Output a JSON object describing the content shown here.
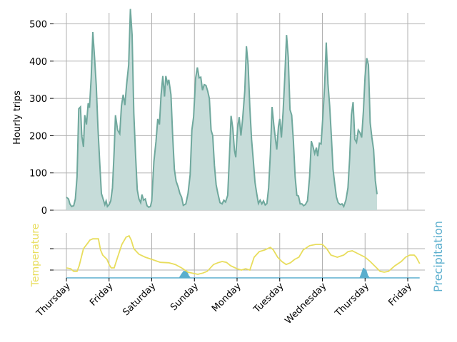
{
  "chart_data": [
    {
      "type": "area",
      "ylabel": "Hourly trips",
      "ylim": [
        0,
        560
      ],
      "yticks": [
        0,
        100,
        200,
        300,
        400,
        500
      ],
      "x_unit": "days since start (hourly samples)",
      "x_range": [
        0,
        8
      ],
      "xticks": [
        0,
        1,
        2,
        3,
        4,
        5,
        6,
        7,
        8
      ],
      "grid": true,
      "color": "#6fa89d",
      "fill": "#c6dcd9",
      "series": [
        {
          "points": [
            [
              0,
              35
            ],
            [
              0.05,
              30
            ],
            [
              0.08,
              17
            ],
            [
              0.12,
              10
            ],
            [
              0.17,
              12
            ],
            [
              0.21,
              30
            ],
            [
              0.25,
              90
            ],
            [
              0.29,
              272
            ],
            [
              0.33,
              277
            ],
            [
              0.36,
              200
            ],
            [
              0.4,
              170
            ],
            [
              0.43,
              255
            ],
            [
              0.47,
              230
            ],
            [
              0.51,
              287
            ],
            [
              0.54,
              275
            ],
            [
              0.58,
              355
            ],
            [
              0.62,
              478
            ],
            [
              0.66,
              410
            ],
            [
              0.7,
              335
            ],
            [
              0.74,
              220
            ],
            [
              0.78,
              130
            ],
            [
              0.82,
              45
            ],
            [
              0.86,
              30
            ],
            [
              0.9,
              15
            ],
            [
              0.93,
              25
            ],
            [
              0.96,
              10
            ],
            [
              1.0,
              15
            ],
            [
              1.04,
              25
            ],
            [
              1.08,
              60
            ],
            [
              1.12,
              160
            ],
            [
              1.15,
              255
            ],
            [
              1.2,
              215
            ],
            [
              1.25,
              205
            ],
            [
              1.29,
              280
            ],
            [
              1.33,
              310
            ],
            [
              1.37,
              282
            ],
            [
              1.41,
              335
            ],
            [
              1.46,
              390
            ],
            [
              1.5,
              540
            ],
            [
              1.54,
              470
            ],
            [
              1.58,
              260
            ],
            [
              1.62,
              150
            ],
            [
              1.66,
              55
            ],
            [
              1.7,
              30
            ],
            [
              1.74,
              20
            ],
            [
              1.77,
              42
            ],
            [
              1.81,
              27
            ],
            [
              1.85,
              30
            ],
            [
              1.89,
              12
            ],
            [
              1.93,
              8
            ],
            [
              1.97,
              10
            ],
            [
              2.0,
              25
            ],
            [
              2.05,
              130
            ],
            [
              2.1,
              185
            ],
            [
              2.14,
              245
            ],
            [
              2.18,
              230
            ],
            [
              2.22,
              310
            ],
            [
              2.26,
              360
            ],
            [
              2.3,
              305
            ],
            [
              2.33,
              360
            ],
            [
              2.37,
              340
            ],
            [
              2.4,
              350
            ],
            [
              2.45,
              310
            ],
            [
              2.49,
              200
            ],
            [
              2.53,
              110
            ],
            [
              2.57,
              78
            ],
            [
              2.62,
              62
            ],
            [
              2.66,
              45
            ],
            [
              2.7,
              35
            ],
            [
              2.74,
              13
            ],
            [
              2.8,
              17
            ],
            [
              2.85,
              45
            ],
            [
              2.9,
              95
            ],
            [
              2.94,
              215
            ],
            [
              2.98,
              250
            ],
            [
              3.03,
              355
            ],
            [
              3.07,
              383
            ],
            [
              3.11,
              355
            ],
            [
              3.15,
              357
            ],
            [
              3.19,
              322
            ],
            [
              3.23,
              337
            ],
            [
              3.27,
              335
            ],
            [
              3.31,
              320
            ],
            [
              3.35,
              300
            ],
            [
              3.39,
              215
            ],
            [
              3.43,
              200
            ],
            [
              3.47,
              120
            ],
            [
              3.51,
              68
            ],
            [
              3.55,
              45
            ],
            [
              3.6,
              20
            ],
            [
              3.65,
              17
            ],
            [
              3.69,
              27
            ],
            [
              3.73,
              22
            ],
            [
              3.78,
              40
            ],
            [
              3.82,
              140
            ],
            [
              3.86,
              253
            ],
            [
              3.9,
              220
            ],
            [
              3.94,
              160
            ],
            [
              3.97,
              142
            ],
            [
              4.01,
              220
            ],
            [
              4.05,
              250
            ],
            [
              4.09,
              200
            ],
            [
              4.13,
              245
            ],
            [
              4.18,
              320
            ],
            [
              4.22,
              440
            ],
            [
              4.26,
              390
            ],
            [
              4.3,
              275
            ],
            [
              4.34,
              190
            ],
            [
              4.38,
              135
            ],
            [
              4.42,
              75
            ],
            [
              4.46,
              45
            ],
            [
              4.5,
              18
            ],
            [
              4.54,
              27
            ],
            [
              4.58,
              17
            ],
            [
              4.62,
              25
            ],
            [
              4.66,
              14
            ],
            [
              4.7,
              18
            ],
            [
              4.74,
              60
            ],
            [
              4.78,
              150
            ],
            [
              4.82,
              277
            ],
            [
              4.86,
              230
            ],
            [
              4.9,
              190
            ],
            [
              4.93,
              163
            ],
            [
              4.97,
              225
            ],
            [
              5.0,
              245
            ],
            [
              5.04,
              195
            ],
            [
              5.08,
              265
            ],
            [
              5.12,
              360
            ],
            [
              5.16,
              470
            ],
            [
              5.2,
              410
            ],
            [
              5.24,
              270
            ],
            [
              5.28,
              255
            ],
            [
              5.32,
              185
            ],
            [
              5.36,
              90
            ],
            [
              5.4,
              40
            ],
            [
              5.44,
              38
            ],
            [
              5.48,
              17
            ],
            [
              5.52,
              17
            ],
            [
              5.56,
              12
            ],
            [
              5.6,
              15
            ],
            [
              5.65,
              25
            ],
            [
              5.7,
              90
            ],
            [
              5.74,
              185
            ],
            [
              5.78,
              170
            ],
            [
              5.82,
              152
            ],
            [
              5.86,
              168
            ],
            [
              5.89,
              145
            ],
            [
              5.93,
              180
            ],
            [
              5.97,
              178
            ],
            [
              6.01,
              250
            ],
            [
              6.05,
              330
            ],
            [
              6.09,
              450
            ],
            [
              6.13,
              340
            ],
            [
              6.17,
              280
            ],
            [
              6.21,
              200
            ],
            [
              6.25,
              110
            ],
            [
              6.29,
              70
            ],
            [
              6.33,
              35
            ],
            [
              6.37,
              20
            ],
            [
              6.42,
              15
            ],
            [
              6.46,
              17
            ],
            [
              6.5,
              10
            ],
            [
              6.55,
              27
            ],
            [
              6.6,
              60
            ],
            [
              6.64,
              140
            ],
            [
              6.68,
              255
            ],
            [
              6.72,
              290
            ],
            [
              6.76,
              190
            ],
            [
              6.8,
              182
            ],
            [
              6.84,
              215
            ],
            [
              6.88,
              208
            ],
            [
              6.92,
              195
            ],
            [
              6.96,
              265
            ],
            [
              7.0,
              360
            ],
            [
              7.04,
              408
            ],
            [
              7.08,
              390
            ],
            [
              7.12,
              235
            ],
            [
              7.16,
              195
            ],
            [
              7.2,
              163
            ],
            [
              7.24,
              80
            ],
            [
              7.28,
              43
            ]
          ]
        }
      ]
    },
    {
      "type": "line",
      "ylabel": "Temperature",
      "ylabel_color": "#e8dd5c",
      "x_range": [
        0,
        8
      ],
      "xticks": [
        0,
        1,
        2,
        3,
        4,
        5,
        6,
        7,
        8
      ],
      "xtick_labels": [
        "Thursday",
        "Friday",
        "Saturday",
        "Sunday",
        "Monday",
        "Tuesday",
        "Wednesday",
        "Thursday",
        "Friday"
      ],
      "ylim": [
        0,
        1
      ],
      "grid": true,
      "color": "#e8dd5c",
      "series": [
        {
          "points": [
            [
              0,
              0.2
            ],
            [
              0.1,
              0.18
            ],
            [
              0.17,
              0.12
            ],
            [
              0.25,
              0.12
            ],
            [
              0.3,
              0.25
            ],
            [
              0.4,
              0.65
            ],
            [
              0.5,
              0.78
            ],
            [
              0.55,
              0.85
            ],
            [
              0.62,
              0.88
            ],
            [
              0.75,
              0.88
            ],
            [
              0.8,
              0.62
            ],
            [
              0.85,
              0.5
            ],
            [
              0.95,
              0.4
            ],
            [
              1.0,
              0.28
            ],
            [
              1.05,
              0.2
            ],
            [
              1.12,
              0.2
            ],
            [
              1.2,
              0.45
            ],
            [
              1.3,
              0.75
            ],
            [
              1.4,
              0.92
            ],
            [
              1.47,
              0.95
            ],
            [
              1.52,
              0.85
            ],
            [
              1.58,
              0.65
            ],
            [
              1.7,
              0.52
            ],
            [
              1.85,
              0.45
            ],
            [
              2.0,
              0.4
            ],
            [
              2.2,
              0.33
            ],
            [
              2.4,
              0.32
            ],
            [
              2.55,
              0.28
            ],
            [
              2.7,
              0.2
            ],
            [
              2.85,
              0.1
            ],
            [
              2.98,
              0.07
            ],
            [
              3.08,
              0.05
            ],
            [
              3.2,
              0.08
            ],
            [
              3.3,
              0.12
            ],
            [
              3.45,
              0.28
            ],
            [
              3.55,
              0.32
            ],
            [
              3.65,
              0.35
            ],
            [
              3.75,
              0.33
            ],
            [
              3.85,
              0.25
            ],
            [
              4.0,
              0.18
            ],
            [
              4.1,
              0.15
            ],
            [
              4.2,
              0.18
            ],
            [
              4.3,
              0.15
            ],
            [
              4.4,
              0.45
            ],
            [
              4.52,
              0.58
            ],
            [
              4.65,
              0.62
            ],
            [
              4.78,
              0.68
            ],
            [
              4.85,
              0.62
            ],
            [
              4.95,
              0.45
            ],
            [
              5.05,
              0.35
            ],
            [
              5.15,
              0.28
            ],
            [
              5.25,
              0.32
            ],
            [
              5.35,
              0.4
            ],
            [
              5.45,
              0.45
            ],
            [
              5.55,
              0.62
            ],
            [
              5.7,
              0.72
            ],
            [
              5.85,
              0.75
            ],
            [
              6.0,
              0.75
            ],
            [
              6.1,
              0.65
            ],
            [
              6.2,
              0.5
            ],
            [
              6.35,
              0.45
            ],
            [
              6.5,
              0.5
            ],
            [
              6.6,
              0.58
            ],
            [
              6.7,
              0.6
            ],
            [
              6.8,
              0.55
            ],
            [
              6.9,
              0.5
            ],
            [
              7.0,
              0.45
            ],
            [
              7.12,
              0.35
            ],
            [
              7.25,
              0.22
            ],
            [
              7.35,
              0.12
            ],
            [
              7.45,
              0.1
            ],
            [
              7.55,
              0.12
            ],
            [
              7.7,
              0.25
            ],
            [
              7.85,
              0.35
            ],
            [
              7.95,
              0.45
            ],
            [
              8.05,
              0.5
            ],
            [
              8.15,
              0.5
            ],
            [
              8.2,
              0.45
            ],
            [
              8.28,
              0.3
            ]
          ]
        }
      ]
    },
    {
      "type": "area",
      "ylabel": "Precipitation",
      "ylabel_color": "#5aaecd",
      "ylim": [
        0,
        1
      ],
      "color": "#5aaecd",
      "fill": "#5aaecd",
      "series": [
        {
          "points": [
            [
              0,
              0
            ],
            [
              2.65,
              0
            ],
            [
              2.7,
              0.08
            ],
            [
              2.75,
              0.15
            ],
            [
              2.82,
              0.15
            ],
            [
              2.86,
              0.05
            ],
            [
              2.9,
              0
            ],
            [
              6.88,
              0
            ],
            [
              6.92,
              0.1
            ],
            [
              6.96,
              0.22
            ],
            [
              7.02,
              0.18
            ],
            [
              7.06,
              0.05
            ],
            [
              7.1,
              0
            ],
            [
              8.28,
              0
            ]
          ]
        }
      ]
    }
  ]
}
